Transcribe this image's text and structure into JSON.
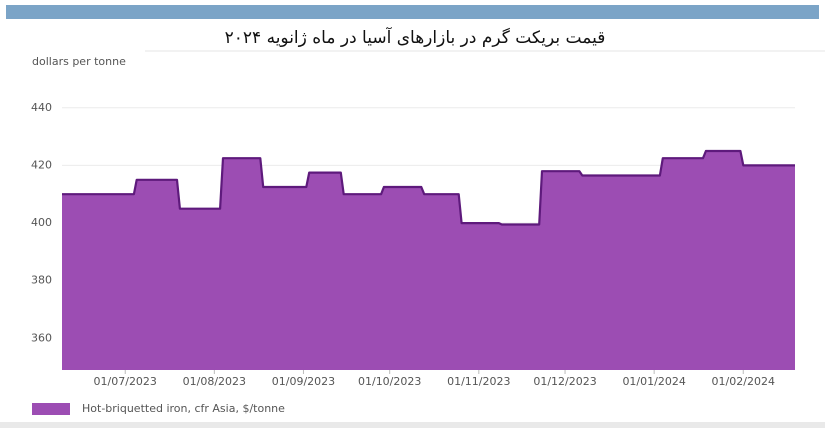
{
  "chart_data": {
    "type": "area",
    "title": "قیمت بریکت گرم در بازارهای آسیا در ماه ژانویه ۲۰۲۴",
    "y_label": "dollars per tonne",
    "x": [
      "2023-06-09",
      "2023-07-04",
      "2023-07-05",
      "2023-07-19",
      "2023-07-20",
      "2023-08-03",
      "2023-08-04",
      "2023-08-17",
      "2023-08-18",
      "2023-09-02",
      "2023-09-03",
      "2023-09-14",
      "2023-09-15",
      "2023-09-28",
      "2023-09-29",
      "2023-10-12",
      "2023-10-13",
      "2023-10-25",
      "2023-10-26",
      "2023-11-08",
      "2023-11-09",
      "2023-11-22",
      "2023-11-23",
      "2023-12-06",
      "2023-12-07",
      "2024-01-03",
      "2024-01-04",
      "2024-01-18",
      "2024-01-19",
      "2024-01-31",
      "2024-02-01",
      "2024-02-19"
    ],
    "series": [
      {
        "name": "Hot-briquetted iron, cfr Asia, $/tonne",
        "color": "#9c4db3",
        "line_color": "#5e1a7c",
        "values": [
          410,
          410,
          415,
          415,
          405,
          405,
          422.5,
          422.5,
          412.5,
          412.5,
          417.5,
          417.5,
          410,
          410,
          412.5,
          412.5,
          410,
          410,
          400,
          400,
          399.5,
          399.5,
          418,
          418,
          416.5,
          416.5,
          422.5,
          422.5,
          425,
          425,
          420,
          420
        ]
      }
    ],
    "xlim": [
      "2023-06-09",
      "2024-02-19"
    ],
    "xticks": [
      {
        "value": "2023-07-01",
        "label": "01/07/2023"
      },
      {
        "value": "2023-08-01",
        "label": "01/08/2023"
      },
      {
        "value": "2023-09-01",
        "label": "01/09/2023"
      },
      {
        "value": "2023-10-01",
        "label": "01/10/2023"
      },
      {
        "value": "2023-11-01",
        "label": "01/11/2023"
      },
      {
        "value": "2023-12-01",
        "label": "01/12/2023"
      },
      {
        "value": "2024-01-01",
        "label": "01/01/2024"
      },
      {
        "value": "2024-02-01",
        "label": "01/02/2024"
      }
    ],
    "ylim": [
      349,
      450
    ],
    "yticks": [
      360,
      380,
      400,
      420,
      440
    ],
    "grid": true
  }
}
